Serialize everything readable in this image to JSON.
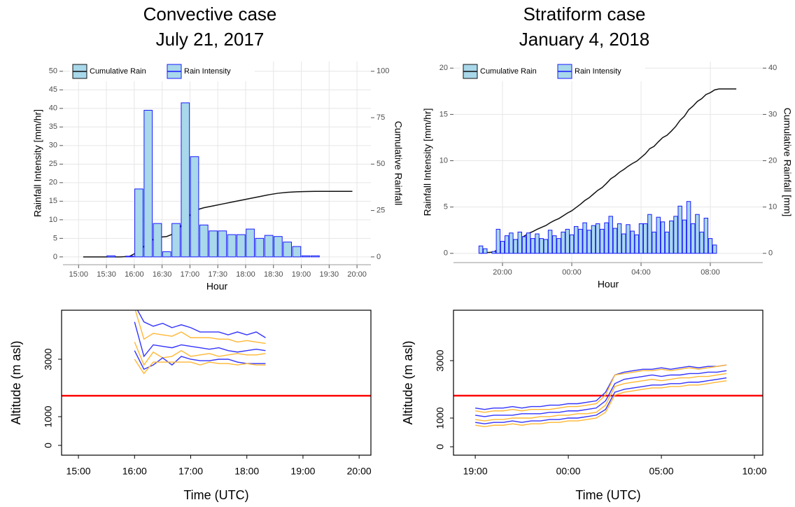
{
  "chart_data": [
    {
      "type": "bar",
      "title": "Convective case",
      "subtitle": "July 21, 2017",
      "xlabel": "Hour",
      "ylabel": "Rainfall Intensity [mm/hr]",
      "y2label": "Cumulative Rainfall",
      "x": [
        15.083,
        15.25,
        15.417,
        15.583,
        15.75,
        15.917,
        16.083,
        16.25,
        16.417,
        16.583,
        16.75,
        16.917,
        17.083,
        17.25,
        17.417,
        17.583,
        17.75,
        17.917,
        18.083,
        18.25,
        18.417,
        18.583,
        18.75,
        18.917,
        19.083,
        19.25,
        19.417,
        19.583,
        19.75,
        19.917
      ],
      "series": [
        {
          "name": "Cumulative Rain",
          "type": "line",
          "axis": "y2",
          "color": "#111111",
          "values": [
            0,
            0,
            0,
            0,
            0,
            0.3,
            3,
            8,
            10.5,
            11,
            13,
            20,
            25,
            26.5,
            27.5,
            28.5,
            29.5,
            30.5,
            31.5,
            32.5,
            33.5,
            34.3,
            34.8,
            35.1,
            35.2,
            35.3,
            35.3,
            35.3,
            35.3,
            35.3
          ]
        },
        {
          "name": "Rain Intensity",
          "type": "bar",
          "color": "#1a1aff",
          "fill": "#a8d8ea",
          "values": [
            0,
            0,
            0,
            0.3,
            0,
            0.2,
            18.3,
            39.5,
            9,
            1.4,
            9,
            41.5,
            27,
            8.6,
            7,
            7,
            6,
            6,
            7.5,
            5,
            5.8,
            5.5,
            4,
            2.8,
            0.3,
            0.3,
            0,
            0,
            0,
            0
          ]
        }
      ],
      "xlim": [
        14.72,
        20.25
      ],
      "xticks": [
        {
          "value": 15,
          "label": "15:00"
        },
        {
          "value": 15.5,
          "label": "15:30"
        },
        {
          "value": 16,
          "label": "16:00"
        },
        {
          "value": 16.5,
          "label": "16:30"
        },
        {
          "value": 17,
          "label": "17:00"
        },
        {
          "value": 17.5,
          "label": "17:30"
        },
        {
          "value": 18,
          "label": "18:00"
        },
        {
          "value": 18.5,
          "label": "18:30"
        },
        {
          "value": 19,
          "label": "19:00"
        },
        {
          "value": 19.5,
          "label": "19:30"
        },
        {
          "value": 20,
          "label": "20:00"
        }
      ],
      "ylim": [
        -2.1,
        52.6
      ],
      "yticks": [
        0,
        5,
        10,
        15,
        20,
        25,
        30,
        35,
        40,
        45,
        50
      ],
      "y2lim": [
        -4.2,
        105.2
      ],
      "y2ticks": [
        0,
        25,
        50,
        75,
        100
      ],
      "grid": true,
      "legend": "top-left"
    },
    {
      "type": "bar",
      "title": "Stratiform case",
      "subtitle": "January 4, 2018",
      "xlabel": "Hour",
      "ylabel": "Rainfall Intensity [mm/hr]",
      "y2label": "Cumulative Rainfall [mm]",
      "x": [
        18.75,
        19,
        19.25,
        19.5,
        19.75,
        20,
        20.25,
        20.5,
        20.75,
        21,
        21.25,
        21.5,
        21.75,
        22,
        22.25,
        22.5,
        22.75,
        23,
        23.25,
        23.5,
        23.75,
        24,
        24.25,
        24.5,
        24.75,
        25,
        25.25,
        25.5,
        25.75,
        26,
        26.25,
        26.5,
        26.75,
        27,
        27.25,
        27.5,
        27.75,
        28,
        28.25,
        28.5,
        28.75,
        29,
        29.25,
        29.5,
        29.75,
        30,
        30.25,
        30.5,
        30.75,
        31,
        31.25,
        31.5,
        31.75,
        32,
        32.25,
        32.5,
        32.75,
        33,
        33.25,
        33.5
      ],
      "series": [
        {
          "name": "Cumulative Rain",
          "type": "line",
          "axis": "y2",
          "color": "#111111",
          "values": [
            0,
            0.2,
            0.2,
            0.3,
            0.9,
            1.3,
            1.8,
            2.3,
            2.7,
            3.3,
            3.7,
            4.3,
            4.7,
            5.2,
            5.6,
            6.0,
            6.6,
            7.1,
            7.5,
            8.1,
            8.7,
            9.2,
            9.9,
            10.6,
            11.4,
            12.0,
            12.8,
            13.6,
            14.2,
            15.1,
            16.1,
            16.7,
            17.5,
            18.1,
            18.8,
            19.4,
            19.9,
            20.7,
            21.5,
            22.6,
            23.1,
            24.1,
            25.0,
            25.5,
            26.4,
            27.4,
            28.7,
            29.6,
            31.0,
            31.8,
            32.8,
            33.4,
            34.3,
            34.7,
            35.3,
            35.5,
            35.5,
            35.5,
            35.5,
            35.5
          ]
        },
        {
          "name": "Rain Intensity",
          "type": "bar",
          "color": "#1a1aff",
          "fill": "#a8d8ea",
          "values": [
            0.8,
            0.5,
            0,
            0.2,
            2.6,
            1.3,
            1.9,
            2.2,
            1.5,
            2.3,
            1.8,
            2.2,
            1.6,
            2.1,
            1.6,
            1.5,
            2.5,
            1.9,
            1.6,
            2.3,
            2.6,
            2.0,
            2.9,
            2.6,
            3.3,
            2.5,
            3.0,
            3.2,
            2.6,
            3.3,
            4.0,
            2.7,
            3.2,
            2.1,
            3.1,
            2.4,
            2.0,
            3.2,
            3.2,
            4.2,
            2.3,
            3.9,
            3.4,
            2.3,
            3.5,
            4.0,
            5.1,
            3.6,
            5.6,
            3.2,
            4.2,
            2.3,
            3.8,
            1.6,
            0.9,
            0,
            0,
            0,
            0,
            0
          ]
        }
      ],
      "xlim": [
        17.17,
        35.03
      ],
      "xticks": [
        {
          "value": 20,
          "label": "20:00"
        },
        {
          "value": 24,
          "label": "00:00"
        },
        {
          "value": 28,
          "label": "04:00"
        },
        {
          "value": 32,
          "label": "08:00"
        }
      ],
      "ylim": [
        -1,
        20.7
      ],
      "yticks": [
        0,
        5,
        10,
        15,
        20
      ],
      "y2lim": [
        -2,
        41.4
      ],
      "y2ticks": [
        0,
        10,
        20,
        30,
        40
      ],
      "grid": true,
      "legend": "top-left"
    },
    {
      "type": "line",
      "xlabel": "Time (UTC)",
      "ylabel": "Altitude (m asl)",
      "x": [
        16,
        16.167,
        16.333,
        16.5,
        16.667,
        16.833,
        17,
        17.167,
        17.333,
        17.5,
        17.667,
        17.833,
        18,
        18.167,
        18.333
      ],
      "series": [
        {
          "color": "#3333ff",
          "values": [
            4900,
            4300,
            4150,
            4250,
            4100,
            4200,
            4100,
            3950,
            3950,
            3950,
            3850,
            3950,
            3850,
            3950,
            3750
          ]
        },
        {
          "color": "#ffb733",
          "values": [
            4800,
            3700,
            3900,
            3850,
            3800,
            3950,
            3750,
            3750,
            3750,
            3700,
            3700,
            3600,
            3650,
            3600,
            3550
          ]
        },
        {
          "color": "#3333ff",
          "values": [
            4300,
            3100,
            3500,
            3450,
            3400,
            3500,
            3450,
            3400,
            3350,
            3400,
            3300,
            3250,
            3300,
            3350,
            3300
          ]
        },
        {
          "color": "#ffb733",
          "values": [
            3600,
            2800,
            3250,
            3050,
            3100,
            3300,
            3100,
            3150,
            3200,
            3100,
            3150,
            3200,
            3150,
            3150,
            3200
          ]
        },
        {
          "color": "#3333ff",
          "values": [
            3300,
            2650,
            2800,
            3050,
            2800,
            3100,
            3000,
            2950,
            2950,
            3000,
            3000,
            2900,
            2850,
            2850,
            2850
          ]
        },
        {
          "color": "#ffb733",
          "values": [
            3000,
            2500,
            2900,
            2900,
            2900,
            2900,
            2900,
            2800,
            2900,
            2850,
            2850,
            2800,
            2850,
            2800,
            2800
          ]
        }
      ],
      "xlim": [
        14.7,
        20.21
      ],
      "xticks": [
        {
          "value": 15,
          "label": "15:00"
        },
        {
          "value": 16,
          "label": "16:00"
        },
        {
          "value": 17,
          "label": "17:00"
        },
        {
          "value": 18,
          "label": "18:00"
        },
        {
          "value": 19,
          "label": "19:00"
        },
        {
          "value": 20,
          "label": "20:00"
        }
      ],
      "ylim": [
        -341,
        4707
      ],
      "yticks": [
        0,
        1000,
        3000
      ],
      "hline": {
        "value": 1730,
        "color": "#ff0000"
      }
    },
    {
      "type": "line",
      "xlabel": "Time (UTC)",
      "ylabel": "Altitude (m asl)",
      "x": [
        19,
        19.5,
        20,
        20.5,
        21,
        21.5,
        22,
        22.5,
        23,
        23.5,
        24,
        24.5,
        25,
        25.5,
        26,
        26.5,
        27,
        27.5,
        28,
        28.5,
        29,
        29.5,
        30,
        30.5,
        31,
        31.5,
        32,
        32.5
      ],
      "series": [
        {
          "color": "#3333ff",
          "values": [
            1350,
            1300,
            1350,
            1350,
            1400,
            1350,
            1400,
            1400,
            1450,
            1450,
            1500,
            1500,
            1550,
            1600,
            1900,
            2500,
            2600,
            2650,
            2700,
            2700,
            2750,
            2700,
            2750,
            2800,
            2750,
            2800,
            2800,
            2850
          ]
        },
        {
          "color": "#ffb733",
          "values": [
            1250,
            1200,
            1250,
            1250,
            1300,
            1250,
            1300,
            1300,
            1300,
            1350,
            1400,
            1400,
            1450,
            1500,
            1800,
            2500,
            2550,
            2600,
            2650,
            2650,
            2700,
            2650,
            2700,
            2750,
            2700,
            2750,
            2800,
            2850
          ]
        },
        {
          "color": "#3333ff",
          "values": [
            1100,
            1050,
            1100,
            1100,
            1100,
            1150,
            1150,
            1150,
            1200,
            1200,
            1250,
            1250,
            1300,
            1350,
            1600,
            2200,
            2350,
            2400,
            2450,
            2500,
            2450,
            2500,
            2500,
            2550,
            2550,
            2600,
            2600,
            2650
          ]
        },
        {
          "color": "#ffb733",
          "values": [
            950,
            900,
            950,
            950,
            1000,
            1000,
            1000,
            1050,
            1050,
            1100,
            1100,
            1150,
            1150,
            1200,
            1450,
            2100,
            2200,
            2250,
            2300,
            2350,
            2300,
            2350,
            2400,
            2400,
            2450,
            2450,
            2500,
            2550
          ]
        },
        {
          "color": "#3333ff",
          "values": [
            850,
            800,
            850,
            850,
            900,
            850,
            900,
            900,
            950,
            950,
            1000,
            1000,
            1050,
            1100,
            1300,
            1900,
            2000,
            2050,
            2100,
            2150,
            2150,
            2200,
            2200,
            2250,
            2250,
            2300,
            2350,
            2400
          ]
        },
        {
          "color": "#ffb733",
          "values": [
            750,
            700,
            750,
            750,
            800,
            750,
            800,
            800,
            850,
            850,
            900,
            900,
            950,
            1000,
            1200,
            1800,
            1900,
            1950,
            2000,
            2050,
            2050,
            2100,
            2100,
            2150,
            2150,
            2200,
            2250,
            2300
          ]
        }
      ],
      "xlim": [
        17.83,
        34.45
      ],
      "xticks": [
        {
          "value": 19,
          "label": "19:00"
        },
        {
          "value": 24,
          "label": "00:00"
        },
        {
          "value": 29,
          "label": "05:00"
        },
        {
          "value": 34,
          "label": "10:00"
        }
      ],
      "ylim": [
        -293,
        4756
      ],
      "yticks": [
        0,
        1000,
        3000
      ],
      "hline": {
        "value": 1780,
        "color": "#ff0000"
      }
    }
  ]
}
